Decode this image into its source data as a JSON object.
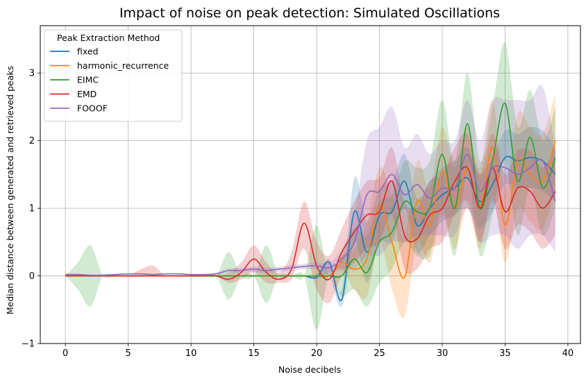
{
  "chart_data": {
    "type": "line",
    "title": "Impact of noise on peak detection: Simulated Oscillations",
    "xlabel": "Noise decibels",
    "ylabel": "Median distance between generated and retrieved peaks",
    "xlim": [
      -2,
      41
    ],
    "ylim": [
      -1,
      3.7
    ],
    "xticks": [
      0,
      5,
      10,
      15,
      20,
      25,
      30,
      35,
      40
    ],
    "yticks": [
      -1,
      0,
      1,
      2,
      3
    ],
    "grid": true,
    "legend": {
      "title": "Peak Extraction Method",
      "placement": "top-left"
    },
    "x": [
      0,
      1,
      2,
      3,
      4,
      5,
      6,
      7,
      8,
      9,
      10,
      11,
      12,
      13,
      14,
      15,
      16,
      17,
      18,
      19,
      20,
      21,
      22,
      23,
      24,
      25,
      26,
      27,
      28,
      29,
      30,
      31,
      32,
      33,
      34,
      35,
      36,
      37,
      38,
      39
    ],
    "series": [
      {
        "name": "fixed",
        "color": "#1f77b4",
        "values": [
          0,
          0,
          0,
          0,
          0,
          0,
          0,
          0,
          0,
          0,
          0,
          0,
          0,
          0,
          0,
          0,
          0,
          0,
          0,
          0,
          -0.02,
          0.2,
          -0.35,
          0.95,
          0.35,
          0.9,
          0.95,
          1.4,
          0.75,
          1.0,
          1.2,
          1.3,
          1.45,
          1.1,
          1.35,
          1.75,
          1.7,
          1.75,
          1.7,
          1.5
        ],
        "lower": [
          0,
          0,
          0,
          0,
          0,
          0,
          0,
          0,
          0,
          0,
          0,
          0,
          0,
          0,
          0,
          0,
          0,
          0,
          0,
          0,
          -0.05,
          0,
          -0.45,
          0.5,
          -0.1,
          0.5,
          0.5,
          1.0,
          0.35,
          0.6,
          0.8,
          0.9,
          1.0,
          0.7,
          0.95,
          1.35,
          1.3,
          1.3,
          1.25,
          1.1
        ],
        "upper": [
          0,
          0,
          0,
          0,
          0,
          0,
          0,
          0,
          0,
          0,
          0,
          0,
          0,
          0,
          0,
          0,
          0,
          0,
          0,
          0,
          0.02,
          0.25,
          -0.2,
          1.45,
          0.8,
          1.3,
          1.4,
          1.8,
          1.15,
          1.4,
          1.6,
          1.7,
          1.9,
          1.5,
          1.75,
          2.15,
          2.1,
          2.2,
          2.15,
          1.9
        ]
      },
      {
        "name": "harmonic_recurrence",
        "color": "#ff7f0e",
        "values": [
          0,
          0,
          0,
          0,
          0,
          0,
          0,
          0,
          0,
          0,
          0,
          0,
          0,
          0,
          0,
          0,
          0,
          0,
          0,
          0,
          0,
          0,
          0.2,
          0.1,
          0.25,
          1.05,
          0.5,
          -0.02,
          1.1,
          0.75,
          1.55,
          1.0,
          1.6,
          1.0,
          1.9,
          0.75,
          1.7,
          1.5,
          1.4,
          2.0
        ],
        "lower": [
          0,
          0,
          0,
          0,
          0,
          0,
          0,
          0,
          0,
          0,
          0,
          0,
          0,
          0,
          0,
          0,
          0,
          0,
          0,
          0,
          0,
          0,
          0.1,
          -0.2,
          -0.3,
          0.5,
          -0.2,
          -0.6,
          0.5,
          0.2,
          0.9,
          0.4,
          1.0,
          0.4,
          1.2,
          0.2,
          1.0,
          0.8,
          0.7,
          1.3
        ],
        "upper": [
          0,
          0,
          0,
          0,
          0,
          0,
          0,
          0,
          0,
          0,
          0,
          0,
          0,
          0,
          0,
          0,
          0,
          0,
          0,
          0,
          0,
          0,
          0.3,
          0.4,
          0.8,
          1.6,
          1.2,
          0.6,
          1.7,
          1.3,
          2.2,
          1.6,
          2.2,
          1.6,
          2.6,
          1.3,
          2.4,
          2.2,
          2.1,
          2.7
        ]
      },
      {
        "name": "EIMC",
        "color": "#2ca02c",
        "values": [
          0,
          0,
          0,
          0,
          0,
          0,
          0,
          0,
          0,
          0,
          0,
          0,
          0,
          0,
          0,
          0,
          0,
          0,
          0,
          0,
          0,
          0,
          0,
          0.25,
          0.05,
          0.5,
          0.65,
          1.1,
          0.95,
          1.0,
          1.8,
          1.0,
          2.25,
          1.0,
          1.7,
          2.55,
          1.4,
          2.05,
          1.3,
          1.75
        ],
        "lower": [
          0,
          -0.2,
          -0.45,
          0,
          0,
          0,
          0,
          0,
          0,
          0,
          0,
          0,
          0,
          -0.35,
          0,
          0,
          -0.4,
          0,
          0,
          0,
          -0.8,
          0,
          -0.3,
          -0.2,
          -0.45,
          -0.1,
          0.1,
          0.5,
          0.3,
          0.3,
          1.0,
          0.3,
          1.5,
          0.3,
          0.9,
          1.7,
          0.6,
          1.3,
          0.6,
          1.0
        ],
        "upper": [
          0,
          0.2,
          0.45,
          0,
          0,
          0,
          0,
          0,
          0,
          0,
          0,
          0,
          0,
          0.35,
          0,
          0,
          0.45,
          0,
          0,
          0,
          0.75,
          0,
          0.3,
          0.7,
          0.6,
          1.1,
          1.2,
          1.7,
          1.6,
          1.7,
          2.6,
          1.7,
          3.0,
          1.7,
          2.5,
          3.45,
          2.2,
          2.75,
          2.0,
          2.5
        ]
      },
      {
        "name": "EMD",
        "color": "#d62728",
        "values": [
          0,
          0,
          0,
          0,
          0,
          0,
          0,
          0,
          0,
          0,
          0,
          0,
          0,
          -0.05,
          0.05,
          0.25,
          0.05,
          -0.05,
          0.1,
          0.78,
          0.15,
          -0.05,
          0.35,
          0.65,
          0.9,
          0.95,
          1.4,
          0.6,
          0.55,
          0.9,
          1.0,
          1.4,
          1.6,
          1.0,
          1.6,
          0.95,
          1.3,
          1.25,
          1.0,
          1.25
        ],
        "lower": [
          0,
          0,
          0,
          0,
          0,
          0,
          0,
          0,
          0,
          0,
          0,
          0,
          0,
          -0.1,
          -0.05,
          0.05,
          -0.1,
          -0.1,
          -0.05,
          0.4,
          -0.2,
          -0.4,
          0,
          0.2,
          0.4,
          0.5,
          0.9,
          0.1,
          0.1,
          0.4,
          0.5,
          0.9,
          1.1,
          0.5,
          1.1,
          0.4,
          0.75,
          0.65,
          0.4,
          0.6
        ],
        "upper": [
          0,
          0,
          0,
          0,
          0,
          0,
          0.1,
          0.15,
          0,
          0,
          0,
          0,
          0,
          0.05,
          0.2,
          0.45,
          0.2,
          0.05,
          0.35,
          1.1,
          0.5,
          0.3,
          0.7,
          1.1,
          1.4,
          1.45,
          1.9,
          1.1,
          1.0,
          1.4,
          1.5,
          1.9,
          2.1,
          1.5,
          2.1,
          1.5,
          1.85,
          1.85,
          1.6,
          1.9
        ]
      },
      {
        "name": "FOOOF",
        "color": "#9467bd",
        "values": [
          0.02,
          0.02,
          0.01,
          0.01,
          0.02,
          0.03,
          0.03,
          0.02,
          0.03,
          0.03,
          0.02,
          0.02,
          0.03,
          0.08,
          0.08,
          0.1,
          0.08,
          0.1,
          0.12,
          0.14,
          0.15,
          0.12,
          0.25,
          0.5,
          1.2,
          1.25,
          1.5,
          1.2,
          1.35,
          1.15,
          1.3,
          1.3,
          1.8,
          1.25,
          1.6,
          1.6,
          1.5,
          1.6,
          1.7,
          1.1
        ],
        "lower": [
          0.01,
          0.01,
          0,
          0,
          0.01,
          0.02,
          0.02,
          0.01,
          0.02,
          0.02,
          0.01,
          0.01,
          0.01,
          0.05,
          0.04,
          0.06,
          0.04,
          0.06,
          0.08,
          0.1,
          0.1,
          0.05,
          0.1,
          0.1,
          0.3,
          0.3,
          0.5,
          0.5,
          0.6,
          0.6,
          0.6,
          0.6,
          1.0,
          0.5,
          0.6,
          0.6,
          0.4,
          0.6,
          0.6,
          0.35
        ],
        "upper": [
          0.03,
          0.03,
          0.02,
          0.02,
          0.03,
          0.04,
          0.04,
          0.03,
          0.04,
          0.04,
          0.03,
          0.03,
          0.05,
          0.11,
          0.12,
          0.14,
          0.12,
          0.14,
          0.16,
          0.18,
          0.2,
          0.2,
          0.4,
          0.9,
          2.0,
          2.2,
          2.5,
          1.9,
          2.1,
          1.8,
          2.0,
          2.0,
          2.6,
          2.0,
          2.6,
          2.6,
          2.6,
          2.6,
          2.8,
          1.9
        ]
      }
    ]
  }
}
